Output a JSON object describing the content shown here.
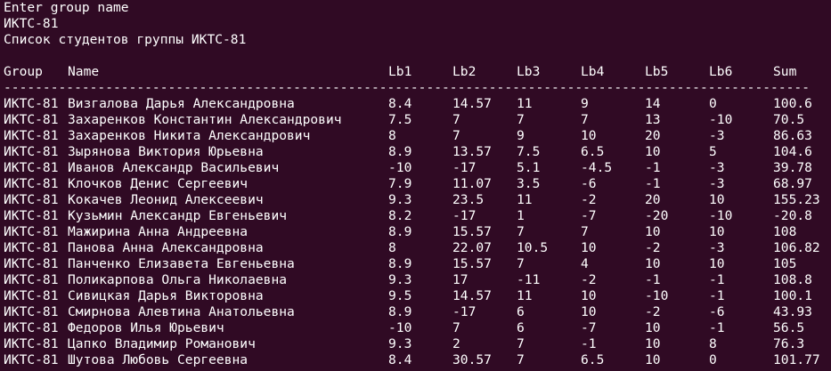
{
  "terminal": {
    "prompt": "Enter group name",
    "input": "ИКТС-81",
    "list_title": "Список студентов группы ИКТС-81",
    "separator": "----------------------------------------------------------------------------------------------------------------------------",
    "headers": {
      "group": "Group",
      "name": "Name",
      "lb1": "Lb1",
      "lb2": "Lb2",
      "lb3": "Lb3",
      "lb4": "Lb4",
      "lb5": "Lb5",
      "lb6": "Lb6",
      "sum": "Sum"
    },
    "rows": [
      {
        "group": "ИКТС-81",
        "name": "Визгалова Дарья Александровна",
        "lb1": "8.4",
        "lb2": "14.57",
        "lb3": "11",
        "lb4": "9",
        "lb5": "14",
        "lb6": "0",
        "sum": "100.6"
      },
      {
        "group": "ИКТС-81",
        "name": "Захаренков Константин Александрович",
        "lb1": "7.5",
        "lb2": "7",
        "lb3": "7",
        "lb4": "7",
        "lb5": "13",
        "lb6": "-10",
        "sum": "70.5"
      },
      {
        "group": "ИКТС-81",
        "name": "Захаренков Никита Александрович",
        "lb1": "8",
        "lb2": "7",
        "lb3": "9",
        "lb4": "10",
        "lb5": "20",
        "lb6": "-3",
        "sum": "86.63"
      },
      {
        "group": "ИКТС-81",
        "name": "Зырянова Виктория Юрьевна",
        "lb1": "8.9",
        "lb2": "13.57",
        "lb3": "7.5",
        "lb4": "6.5",
        "lb5": "10",
        "lb6": "5",
        "sum": "104.6"
      },
      {
        "group": "ИКТС-81",
        "name": "Иванов Александр Васильевич",
        "lb1": "-10",
        "lb2": "-17",
        "lb3": "5.1",
        "lb4": "-4.5",
        "lb5": "-1",
        "lb6": "-3",
        "sum": "39.78"
      },
      {
        "group": "ИКТС-81",
        "name": "Клочков Денис Сергеевич",
        "lb1": "7.9",
        "lb2": "11.07",
        "lb3": "3.5",
        "lb4": "-6",
        "lb5": "-1",
        "lb6": "-3",
        "sum": "68.97"
      },
      {
        "group": "ИКТС-81",
        "name": "Кокачев Леонид Алексеевич",
        "lb1": "9.3",
        "lb2": "23.5",
        "lb3": "11",
        "lb4": "-2",
        "lb5": "20",
        "lb6": "10",
        "sum": "155.23"
      },
      {
        "group": "ИКТС-81",
        "name": "Кузьмин Александр Евгеньевич",
        "lb1": "8.2",
        "lb2": "-17",
        "lb3": "1",
        "lb4": "-7",
        "lb5": "-20",
        "lb6": "-10",
        "sum": "-20.8"
      },
      {
        "group": "ИКТС-81",
        "name": "Мажирина Анна Андреевна",
        "lb1": "8.9",
        "lb2": "15.57",
        "lb3": "7",
        "lb4": "7",
        "lb5": "10",
        "lb6": "10",
        "sum": "108"
      },
      {
        "group": "ИКТС-81",
        "name": "Панова Анна Александровна",
        "lb1": "8",
        "lb2": "22.07",
        "lb3": "10.5",
        "lb4": "10",
        "lb5": "-2",
        "lb6": "-3",
        "sum": "106.82"
      },
      {
        "group": "ИКТС-81",
        "name": "Панченко Елизавета Евгеньевна",
        "lb1": "8.9",
        "lb2": "15.57",
        "lb3": "7",
        "lb4": "4",
        "lb5": "10",
        "lb6": "10",
        "sum": "105"
      },
      {
        "group": "ИКТС-81",
        "name": "Поликарпова Ольга Николаевна",
        "lb1": "9.3",
        "lb2": "17",
        "lb3": "-11",
        "lb4": "-2",
        "lb5": "-1",
        "lb6": "-1",
        "sum": "108.8"
      },
      {
        "group": "ИКТС-81",
        "name": "Сивицкая Дарья Викторовна",
        "lb1": "9.5",
        "lb2": "14.57",
        "lb3": "11",
        "lb4": "10",
        "lb5": "-10",
        "lb6": "-1",
        "sum": "100.1"
      },
      {
        "group": "ИКТС-81",
        "name": "Смирнова Алевтина Анатольевна",
        "lb1": "8.9",
        "lb2": "-17",
        "lb3": "6",
        "lb4": "10",
        "lb5": "-2",
        "lb6": "-6",
        "sum": "43.93"
      },
      {
        "group": "ИКТС-81",
        "name": "Федоров Илья Юрьевич",
        "lb1": "-10",
        "lb2": "7",
        "lb3": "6",
        "lb4": "-7",
        "lb5": "10",
        "lb6": "-1",
        "sum": "56.5"
      },
      {
        "group": "ИКТС-81",
        "name": "Цапко Владимир Романович",
        "lb1": "9.3",
        "lb2": "2",
        "lb3": "7",
        "lb4": "-1",
        "lb5": "10",
        "lb6": "8",
        "sum": "76.3"
      },
      {
        "group": "ИКТС-81",
        "name": "Шутова Любовь Сергеевна",
        "lb1": "8.4",
        "lb2": "30.57",
        "lb3": "7",
        "lb4": "6.5",
        "lb5": "10",
        "lb6": "0",
        "sum": "101.77"
      }
    ]
  },
  "colors": {
    "background": "#300a24",
    "foreground": "#ffffff"
  }
}
